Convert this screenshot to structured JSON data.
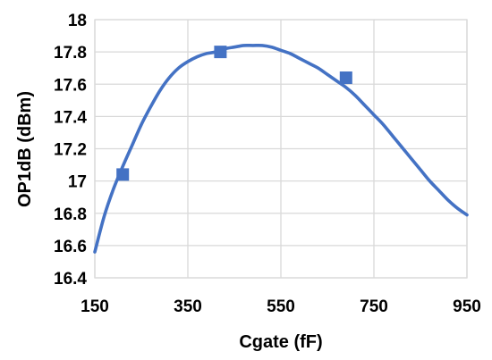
{
  "chart_data": {
    "type": "line",
    "xlabel": "Cgate (fF)",
    "ylabel": "OP1dB (dBm)",
    "xlim": [
      150,
      950
    ],
    "ylim": [
      16.4,
      18
    ],
    "x_ticks": [
      "150",
      "350",
      "550",
      "750",
      "950"
    ],
    "y_ticks": [
      "16.4",
      "16.6",
      "16.8",
      "17",
      "17.2",
      "17.4",
      "17.6",
      "17.8",
      "18"
    ],
    "grid": true,
    "legend": "none",
    "series": [
      {
        "style": "smooth-line",
        "color": "#4472C4",
        "x": [
          150,
          170,
          190,
          210,
          230,
          250,
          270,
          290,
          310,
          330,
          350,
          370,
          390,
          410,
          430,
          450,
          470,
          490,
          510,
          530,
          550,
          570,
          590,
          610,
          630,
          650,
          670,
          690,
          710,
          730,
          750,
          770,
          790,
          810,
          830,
          850,
          870,
          890,
          910,
          930,
          950
        ],
        "y": [
          16.56,
          16.78,
          16.95,
          17.09,
          17.22,
          17.35,
          17.46,
          17.56,
          17.64,
          17.7,
          17.74,
          17.77,
          17.79,
          17.8,
          17.82,
          17.83,
          17.84,
          17.84,
          17.84,
          17.83,
          17.81,
          17.79,
          17.76,
          17.73,
          17.7,
          17.66,
          17.62,
          17.58,
          17.53,
          17.47,
          17.41,
          17.35,
          17.28,
          17.21,
          17.14,
          17.07,
          17.0,
          16.94,
          16.88,
          16.83,
          16.79
        ]
      },
      {
        "style": "markers",
        "marker": "square",
        "color": "#4472C4",
        "x": [
          210,
          420,
          690
        ],
        "y": [
          17.04,
          17.8,
          17.64
        ]
      }
    ]
  }
}
